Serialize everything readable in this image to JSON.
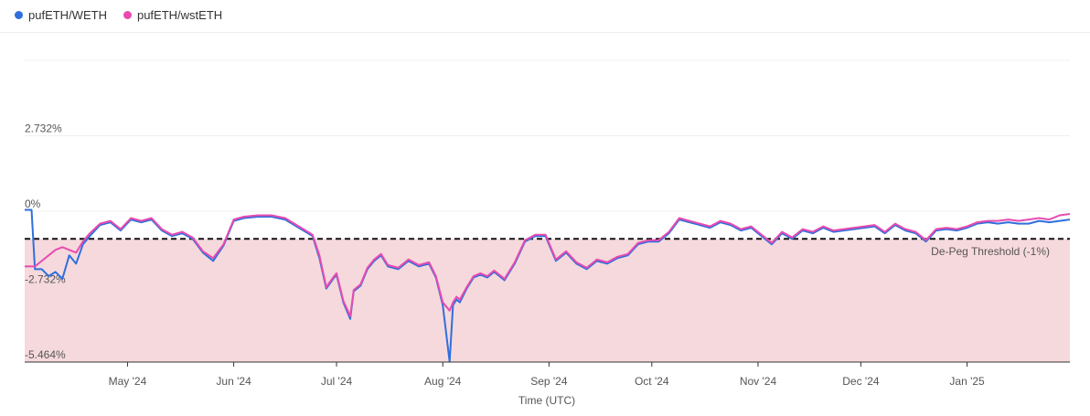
{
  "chart_data": {
    "type": "line",
    "title": "",
    "xlabel": "Time (UTC)",
    "ylabel": "",
    "ylim": [
      -5.464,
      5.464
    ],
    "y_ticks": [
      {
        "value": 2.732,
        "label": "2.732%"
      },
      {
        "value": 0,
        "label": "0%"
      },
      {
        "value": -2.732,
        "label": "-2.732%"
      },
      {
        "value": -5.464,
        "label": "-5.464%"
      }
    ],
    "x_range": [
      "2024-04-01",
      "2025-01-31"
    ],
    "x_ticks": [
      {
        "date": "2024-05-01",
        "label": "May '24"
      },
      {
        "date": "2024-06-01",
        "label": "Jun '24"
      },
      {
        "date": "2024-07-01",
        "label": "Jul '24"
      },
      {
        "date": "2024-08-01",
        "label": "Aug '24"
      },
      {
        "date": "2024-09-01",
        "label": "Sep '24"
      },
      {
        "date": "2024-10-01",
        "label": "Oct '24"
      },
      {
        "date": "2024-11-01",
        "label": "Nov '24"
      },
      {
        "date": "2024-12-01",
        "label": "Dec '24"
      },
      {
        "date": "2025-01-01",
        "label": "Jan '25"
      }
    ],
    "threshold": {
      "value": -1,
      "label": "De-Peg Threshold (-1%)"
    },
    "legend_position": "top-left",
    "grid": true,
    "colors": {
      "weth": "#2f6fde",
      "wsteth": "#e84bb0",
      "danger_fill": "#f6d9dc",
      "threshold": "#111111"
    },
    "series": [
      {
        "name": "pufETH/WETH",
        "x": [
          "2024-04-01",
          "2024-04-03",
          "2024-04-04",
          "2024-04-06",
          "2024-04-08",
          "2024-04-10",
          "2024-04-12",
          "2024-04-14",
          "2024-04-16",
          "2024-04-18",
          "2024-04-20",
          "2024-04-23",
          "2024-04-26",
          "2024-04-29",
          "2024-05-02",
          "2024-05-05",
          "2024-05-08",
          "2024-05-11",
          "2024-05-14",
          "2024-05-17",
          "2024-05-20",
          "2024-05-23",
          "2024-05-26",
          "2024-05-29",
          "2024-06-01",
          "2024-06-04",
          "2024-06-08",
          "2024-06-12",
          "2024-06-16",
          "2024-06-20",
          "2024-06-24",
          "2024-06-26",
          "2024-06-28",
          "2024-06-30",
          "2024-07-01",
          "2024-07-03",
          "2024-07-05",
          "2024-07-06",
          "2024-07-08",
          "2024-07-10",
          "2024-07-12",
          "2024-07-14",
          "2024-07-16",
          "2024-07-19",
          "2024-07-22",
          "2024-07-25",
          "2024-07-28",
          "2024-07-30",
          "2024-08-01",
          "2024-08-03",
          "2024-08-04",
          "2024-08-05",
          "2024-08-06",
          "2024-08-08",
          "2024-08-10",
          "2024-08-12",
          "2024-08-14",
          "2024-08-16",
          "2024-08-19",
          "2024-08-22",
          "2024-08-25",
          "2024-08-28",
          "2024-08-31",
          "2024-09-03",
          "2024-09-06",
          "2024-09-09",
          "2024-09-12",
          "2024-09-15",
          "2024-09-18",
          "2024-09-21",
          "2024-09-24",
          "2024-09-27",
          "2024-09-30",
          "2024-10-03",
          "2024-10-06",
          "2024-10-09",
          "2024-10-12",
          "2024-10-15",
          "2024-10-18",
          "2024-10-21",
          "2024-10-24",
          "2024-10-27",
          "2024-10-30",
          "2024-11-02",
          "2024-11-05",
          "2024-11-08",
          "2024-11-11",
          "2024-11-14",
          "2024-11-17",
          "2024-11-20",
          "2024-11-23",
          "2024-11-26",
          "2024-11-29",
          "2024-12-02",
          "2024-12-05",
          "2024-12-08",
          "2024-12-11",
          "2024-12-14",
          "2024-12-17",
          "2024-12-20",
          "2024-12-23",
          "2024-12-26",
          "2024-12-29",
          "2025-01-01",
          "2025-01-04",
          "2025-01-07",
          "2025-01-10",
          "2025-01-13",
          "2025-01-16",
          "2025-01-19",
          "2025-01-22",
          "2025-01-25",
          "2025-01-28",
          "2025-01-31"
        ],
        "y": [
          0.05,
          0.05,
          -2.1,
          -2.1,
          -2.35,
          -2.2,
          -2.45,
          -1.6,
          -1.9,
          -1.2,
          -0.9,
          -0.5,
          -0.4,
          -0.7,
          -0.3,
          -0.4,
          -0.3,
          -0.7,
          -0.9,
          -0.8,
          -1.0,
          -1.5,
          -1.8,
          -1.25,
          -0.35,
          -0.25,
          -0.2,
          -0.2,
          -0.3,
          -0.6,
          -0.9,
          -1.7,
          -2.8,
          -2.45,
          -2.3,
          -3.3,
          -3.9,
          -2.9,
          -2.7,
          -2.1,
          -1.8,
          -1.6,
          -2.0,
          -2.1,
          -1.8,
          -2.0,
          -1.9,
          -2.4,
          -3.4,
          -5.45,
          -3.4,
          -3.2,
          -3.3,
          -2.8,
          -2.4,
          -2.3,
          -2.4,
          -2.2,
          -2.5,
          -1.9,
          -1.1,
          -0.9,
          -0.9,
          -1.8,
          -1.5,
          -1.9,
          -2.1,
          -1.8,
          -1.9,
          -1.7,
          -1.6,
          -1.2,
          -1.1,
          -1.1,
          -0.8,
          -0.3,
          -0.4,
          -0.5,
          -0.6,
          -0.4,
          -0.5,
          -0.7,
          -0.6,
          -0.9,
          -1.2,
          -0.8,
          -1.0,
          -0.7,
          -0.8,
          -0.6,
          -0.75,
          -0.7,
          -0.65,
          -0.6,
          -0.55,
          -0.8,
          -0.5,
          -0.7,
          -0.8,
          -1.1,
          -0.7,
          -0.65,
          -0.7,
          -0.6,
          -0.45,
          -0.4,
          -0.45,
          -0.4,
          -0.45,
          -0.45,
          -0.35,
          -0.4,
          -0.35,
          -0.3
        ]
      },
      {
        "name": "pufETH/wstETH",
        "x": [
          "2024-04-01",
          "2024-04-03",
          "2024-04-04",
          "2024-04-06",
          "2024-04-08",
          "2024-04-10",
          "2024-04-12",
          "2024-04-14",
          "2024-04-16",
          "2024-04-18",
          "2024-04-20",
          "2024-04-23",
          "2024-04-26",
          "2024-04-29",
          "2024-05-02",
          "2024-05-05",
          "2024-05-08",
          "2024-05-11",
          "2024-05-14",
          "2024-05-17",
          "2024-05-20",
          "2024-05-23",
          "2024-05-26",
          "2024-05-29",
          "2024-06-01",
          "2024-06-04",
          "2024-06-08",
          "2024-06-12",
          "2024-06-16",
          "2024-06-20",
          "2024-06-24",
          "2024-06-26",
          "2024-06-28",
          "2024-06-30",
          "2024-07-01",
          "2024-07-03",
          "2024-07-05",
          "2024-07-06",
          "2024-07-08",
          "2024-07-10",
          "2024-07-12",
          "2024-07-14",
          "2024-07-16",
          "2024-07-19",
          "2024-07-22",
          "2024-07-25",
          "2024-07-28",
          "2024-07-30",
          "2024-08-01",
          "2024-08-03",
          "2024-08-04",
          "2024-08-05",
          "2024-08-06",
          "2024-08-08",
          "2024-08-10",
          "2024-08-12",
          "2024-08-14",
          "2024-08-16",
          "2024-08-19",
          "2024-08-22",
          "2024-08-25",
          "2024-08-28",
          "2024-08-31",
          "2024-09-03",
          "2024-09-06",
          "2024-09-09",
          "2024-09-12",
          "2024-09-15",
          "2024-09-18",
          "2024-09-21",
          "2024-09-24",
          "2024-09-27",
          "2024-09-30",
          "2024-10-03",
          "2024-10-06",
          "2024-10-09",
          "2024-10-12",
          "2024-10-15",
          "2024-10-18",
          "2024-10-21",
          "2024-10-24",
          "2024-10-27",
          "2024-10-30",
          "2024-11-02",
          "2024-11-05",
          "2024-11-08",
          "2024-11-11",
          "2024-11-14",
          "2024-11-17",
          "2024-11-20",
          "2024-11-23",
          "2024-11-26",
          "2024-11-29",
          "2024-12-02",
          "2024-12-05",
          "2024-12-08",
          "2024-12-11",
          "2024-12-14",
          "2024-12-17",
          "2024-12-20",
          "2024-12-23",
          "2024-12-26",
          "2024-12-29",
          "2025-01-01",
          "2025-01-04",
          "2025-01-07",
          "2025-01-10",
          "2025-01-13",
          "2025-01-16",
          "2025-01-19",
          "2025-01-22",
          "2025-01-25",
          "2025-01-28",
          "2025-01-31"
        ],
        "y": [
          -2.0,
          -2.0,
          -2.0,
          -1.8,
          -1.6,
          -1.4,
          -1.3,
          -1.4,
          -1.5,
          -1.1,
          -0.8,
          -0.45,
          -0.35,
          -0.65,
          -0.25,
          -0.35,
          -0.25,
          -0.65,
          -0.85,
          -0.75,
          -0.95,
          -1.45,
          -1.7,
          -1.2,
          -0.3,
          -0.2,
          -0.15,
          -0.15,
          -0.25,
          -0.55,
          -0.85,
          -1.6,
          -2.75,
          -2.4,
          -2.25,
          -3.25,
          -3.8,
          -2.85,
          -2.65,
          -2.05,
          -1.75,
          -1.55,
          -1.95,
          -2.05,
          -1.75,
          -1.95,
          -1.85,
          -2.35,
          -3.3,
          -3.6,
          -3.3,
          -3.1,
          -3.2,
          -2.75,
          -2.35,
          -2.25,
          -2.35,
          -2.15,
          -2.45,
          -1.85,
          -1.05,
          -0.85,
          -0.85,
          -1.75,
          -1.45,
          -1.85,
          -2.05,
          -1.75,
          -1.85,
          -1.65,
          -1.55,
          -1.15,
          -1.05,
          -1.05,
          -0.75,
          -0.25,
          -0.35,
          -0.45,
          -0.55,
          -0.35,
          -0.45,
          -0.65,
          -0.55,
          -0.85,
          -1.15,
          -0.75,
          -0.95,
          -0.65,
          -0.75,
          -0.55,
          -0.7,
          -0.65,
          -0.6,
          -0.55,
          -0.5,
          -0.75,
          -0.45,
          -0.65,
          -0.75,
          -1.05,
          -0.65,
          -0.6,
          -0.65,
          -0.55,
          -0.4,
          -0.35,
          -0.35,
          -0.3,
          -0.35,
          -0.3,
          -0.25,
          -0.3,
          -0.15,
          -0.1
        ]
      }
    ]
  }
}
